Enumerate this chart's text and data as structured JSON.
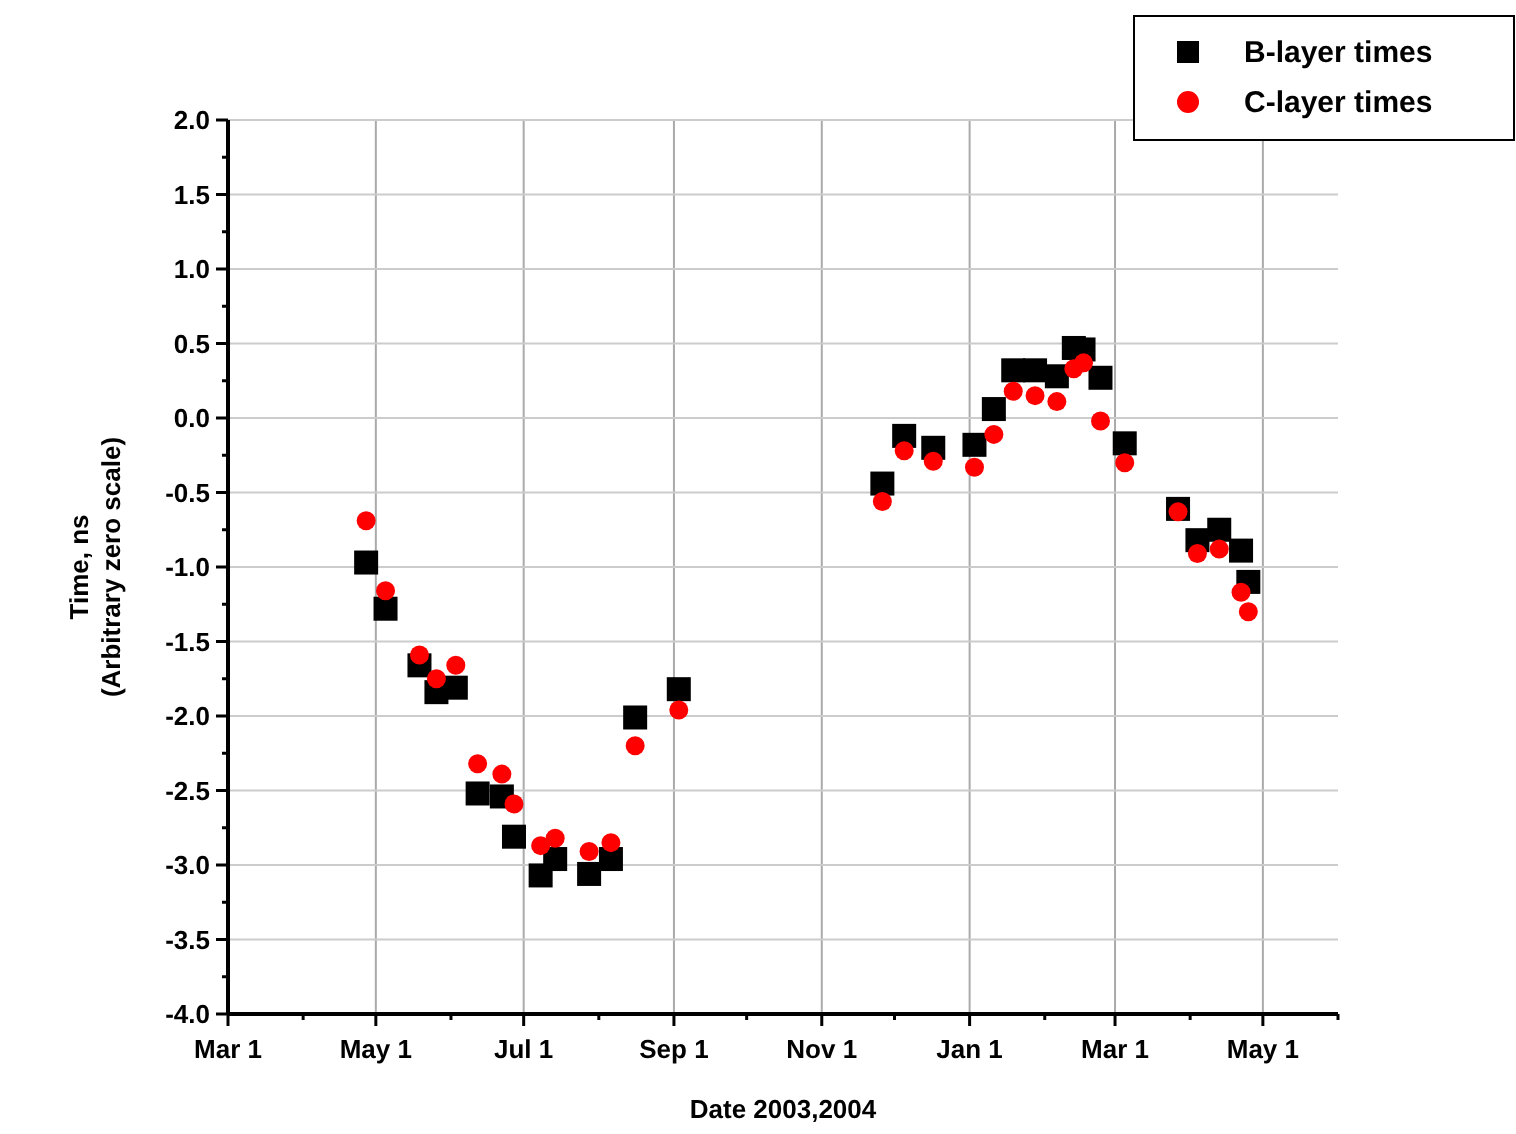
{
  "chart_data": {
    "type": "scatter",
    "xlabel": "Date 2003,2004",
    "ylabel": "Time, ns\n(Arbitrary zero scale)",
    "xlim": [
      "2003-03-01",
      "2004-06-01"
    ],
    "xticks": [
      {
        "value": "2003-03-01",
        "label": "Mar 1"
      },
      {
        "value": "2003-04-01",
        "label": null
      },
      {
        "value": "2003-05-01",
        "label": "May 1"
      },
      {
        "value": "2003-06-01",
        "label": null
      },
      {
        "value": "2003-07-01",
        "label": "Jul 1"
      },
      {
        "value": "2003-08-01",
        "label": null
      },
      {
        "value": "2003-09-01",
        "label": "Sep 1"
      },
      {
        "value": "2003-10-01",
        "label": null
      },
      {
        "value": "2003-11-01",
        "label": "Nov 1"
      },
      {
        "value": "2003-12-01",
        "label": null
      },
      {
        "value": "2004-01-01",
        "label": "Jan 1"
      },
      {
        "value": "2004-02-01",
        "label": null
      },
      {
        "value": "2004-03-01",
        "label": "Mar 1"
      },
      {
        "value": "2004-04-01",
        "label": null
      },
      {
        "value": "2004-05-01",
        "label": "May 1"
      },
      {
        "value": "2004-06-01",
        "label": null
      }
    ],
    "ylim": [
      -4,
      2
    ],
    "yticks": [
      {
        "value": -4,
        "label": "-4.0"
      },
      {
        "value": -3.75,
        "label": null
      },
      {
        "value": -3.5,
        "label": "-3.5"
      },
      {
        "value": -3.25,
        "label": null
      },
      {
        "value": -3,
        "label": "-3.0"
      },
      {
        "value": -2.75,
        "label": null
      },
      {
        "value": -2.5,
        "label": "-2.5"
      },
      {
        "value": -2.25,
        "label": null
      },
      {
        "value": -2,
        "label": "-2.0"
      },
      {
        "value": -1.75,
        "label": null
      },
      {
        "value": -1.5,
        "label": "-1.5"
      },
      {
        "value": -1.25,
        "label": null
      },
      {
        "value": -1,
        "label": "-1.0"
      },
      {
        "value": -0.75,
        "label": null
      },
      {
        "value": -0.5,
        "label": "-0.5"
      },
      {
        "value": -0.25,
        "label": null
      },
      {
        "value": 0,
        "label": "0.0"
      },
      {
        "value": 0.25,
        "label": null
      },
      {
        "value": 0.5,
        "label": "0.5"
      },
      {
        "value": 0.75,
        "label": null
      },
      {
        "value": 1,
        "label": "1.0"
      },
      {
        "value": 1.25,
        "label": null
      },
      {
        "value": 1.5,
        "label": "1.5"
      },
      {
        "value": 1.75,
        "label": null
      },
      {
        "value": 2,
        "label": "2.0"
      }
    ],
    "grid": true,
    "legend": "top right",
    "x": [
      "2003-04-27",
      "2003-05-05",
      "2003-05-19",
      "2003-05-26",
      "2003-06-03",
      "2003-06-12",
      "2003-06-22",
      "2003-06-27",
      "2003-07-08",
      "2003-07-14",
      "2003-07-28",
      "2003-08-06",
      "2003-08-16",
      "2003-09-03",
      "2003-11-26",
      "2003-12-05",
      "2003-12-17",
      "2004-01-03",
      "2004-01-11",
      "2004-01-19",
      "2004-01-28",
      "2004-02-06",
      "2004-02-13",
      "2004-02-17",
      "2004-02-24",
      "2004-03-05",
      "2004-03-27",
      "2004-04-04",
      "2004-04-13",
      "2004-04-22",
      "2004-04-25"
    ],
    "series": [
      {
        "name": "B-layer times",
        "color": "#000000",
        "marker": "square",
        "values": [
          -0.97,
          -1.28,
          -1.66,
          -1.84,
          -1.81,
          -2.52,
          -2.54,
          -2.81,
          -3.07,
          -2.96,
          -3.06,
          -2.96,
          -2.01,
          -1.82,
          -0.44,
          -0.12,
          -0.2,
          -0.18,
          0.06,
          0.32,
          0.32,
          0.28,
          0.47,
          0.46,
          0.27,
          -0.17,
          -0.61,
          -0.82,
          -0.75,
          -0.89,
          -1.1
        ]
      },
      {
        "name": "C-layer times",
        "color": "#ff0000",
        "marker": "circle",
        "values": [
          -0.69,
          -1.16,
          -1.59,
          -1.75,
          -1.66,
          -2.32,
          -2.39,
          -2.59,
          -2.87,
          -2.82,
          -2.91,
          -2.85,
          -2.2,
          -1.96,
          -0.56,
          -0.22,
          -0.29,
          -0.33,
          -0.11,
          0.18,
          0.15,
          0.11,
          0.33,
          0.37,
          -0.02,
          -0.3,
          -0.63,
          -0.91,
          -0.88,
          -1.17,
          -1.3
        ]
      }
    ]
  }
}
